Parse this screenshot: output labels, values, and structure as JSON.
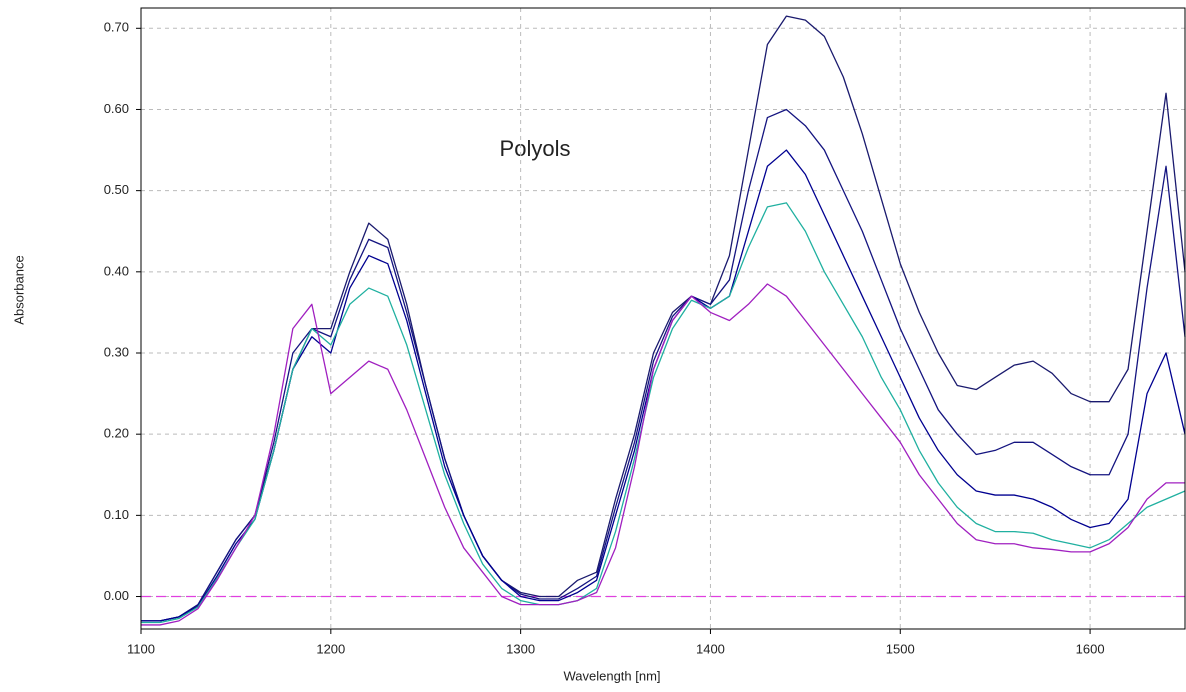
{
  "chart_data": {
    "type": "line",
    "title": "Polyols",
    "xlabel": "Wavelength [nm]",
    "ylabel": "Absorbance",
    "xlim": [
      1100,
      1650
    ],
    "ylim": [
      -0.04,
      0.725
    ],
    "xticks": [
      1100,
      1200,
      1300,
      1400,
      1500,
      1600
    ],
    "yticks": [
      {
        "value": 0,
        "label": "0.00"
      },
      {
        "value": 0.1,
        "label": "0.10"
      },
      {
        "value": 0.2,
        "label": "0.20"
      },
      {
        "value": 0.3,
        "label": "0.30"
      },
      {
        "value": 0.4,
        "label": "0.40"
      },
      {
        "value": 0.5,
        "label": "0.50"
      },
      {
        "value": 0.6,
        "label": "0.60"
      },
      {
        "value": 0.7,
        "label": "0.70"
      }
    ],
    "grid": true,
    "hlines": [
      {
        "value": 0,
        "color": "#e040e0"
      }
    ],
    "x": [
      1100,
      1110,
      1120,
      1130,
      1140,
      1150,
      1160,
      1170,
      1180,
      1190,
      1200,
      1210,
      1220,
      1230,
      1240,
      1250,
      1260,
      1270,
      1280,
      1290,
      1300,
      1310,
      1320,
      1330,
      1340,
      1350,
      1360,
      1370,
      1380,
      1390,
      1400,
      1410,
      1420,
      1430,
      1440,
      1450,
      1460,
      1470,
      1480,
      1490,
      1500,
      1510,
      1520,
      1530,
      1540,
      1550,
      1560,
      1570,
      1580,
      1590,
      1600,
      1610,
      1620,
      1630,
      1640,
      1650
    ],
    "series": [
      {
        "color": "#1a1a6e",
        "values": [
          -0.03,
          -0.03,
          -0.025,
          -0.01,
          0.03,
          0.07,
          0.1,
          0.18,
          0.28,
          0.33,
          0.33,
          0.4,
          0.46,
          0.44,
          0.36,
          0.26,
          0.17,
          0.1,
          0.05,
          0.02,
          0.005,
          0.0,
          0.0,
          0.02,
          0.03,
          0.12,
          0.2,
          0.3,
          0.35,
          0.37,
          0.36,
          0.42,
          0.55,
          0.68,
          0.715,
          0.71,
          0.69,
          0.64,
          0.57,
          0.49,
          0.41,
          0.35,
          0.3,
          0.26,
          0.255,
          0.27,
          0.285,
          0.29,
          0.275,
          0.25,
          0.24,
          0.24,
          0.28,
          0.45,
          0.62,
          0.4
        ]
      },
      {
        "color": "#141480",
        "values": [
          -0.03,
          -0.03,
          -0.025,
          -0.01,
          0.03,
          0.07,
          0.1,
          0.19,
          0.3,
          0.33,
          0.32,
          0.39,
          0.44,
          0.43,
          0.35,
          0.26,
          0.17,
          0.1,
          0.05,
          0.02,
          0.003,
          -0.003,
          -0.003,
          0.01,
          0.025,
          0.11,
          0.19,
          0.29,
          0.345,
          0.37,
          0.36,
          0.39,
          0.5,
          0.59,
          0.6,
          0.58,
          0.55,
          0.5,
          0.45,
          0.39,
          0.33,
          0.28,
          0.23,
          0.2,
          0.175,
          0.18,
          0.19,
          0.19,
          0.175,
          0.16,
          0.15,
          0.15,
          0.2,
          0.38,
          0.53,
          0.32
        ]
      },
      {
        "color": "#000090",
        "values": [
          -0.03,
          -0.03,
          -0.025,
          -0.012,
          0.025,
          0.065,
          0.095,
          0.18,
          0.28,
          0.32,
          0.3,
          0.38,
          0.42,
          0.41,
          0.34,
          0.25,
          0.16,
          0.1,
          0.05,
          0.02,
          0.0,
          -0.005,
          -0.005,
          0.005,
          0.02,
          0.1,
          0.18,
          0.28,
          0.34,
          0.37,
          0.355,
          0.37,
          0.45,
          0.53,
          0.55,
          0.52,
          0.47,
          0.42,
          0.37,
          0.32,
          0.27,
          0.22,
          0.18,
          0.15,
          0.13,
          0.125,
          0.125,
          0.12,
          0.11,
          0.095,
          0.085,
          0.09,
          0.12,
          0.25,
          0.3,
          0.2
        ]
      },
      {
        "color": "#20b0a0",
        "values": [
          -0.032,
          -0.032,
          -0.027,
          -0.013,
          0.022,
          0.06,
          0.095,
          0.18,
          0.28,
          0.33,
          0.31,
          0.36,
          0.38,
          0.37,
          0.31,
          0.23,
          0.15,
          0.09,
          0.04,
          0.01,
          -0.005,
          -0.01,
          -0.01,
          -0.005,
          0.01,
          0.08,
          0.17,
          0.27,
          0.33,
          0.365,
          0.355,
          0.37,
          0.43,
          0.48,
          0.485,
          0.45,
          0.4,
          0.36,
          0.32,
          0.27,
          0.23,
          0.18,
          0.14,
          0.11,
          0.09,
          0.08,
          0.08,
          0.078,
          0.07,
          0.065,
          0.06,
          0.07,
          0.09,
          0.11,
          0.12,
          0.13
        ]
      },
      {
        "color": "#a020c0",
        "values": [
          -0.035,
          -0.035,
          -0.03,
          -0.015,
          0.02,
          0.06,
          0.1,
          0.2,
          0.33,
          0.36,
          0.25,
          0.27,
          0.29,
          0.28,
          0.23,
          0.17,
          0.11,
          0.06,
          0.03,
          0.0,
          -0.01,
          -0.01,
          -0.01,
          -0.005,
          0.005,
          0.06,
          0.16,
          0.28,
          0.34,
          0.37,
          0.35,
          0.34,
          0.36,
          0.385,
          0.37,
          0.34,
          0.31,
          0.28,
          0.25,
          0.22,
          0.19,
          0.15,
          0.12,
          0.09,
          0.07,
          0.065,
          0.065,
          0.06,
          0.058,
          0.055,
          0.055,
          0.065,
          0.085,
          0.12,
          0.14,
          0.14
        ]
      }
    ]
  }
}
